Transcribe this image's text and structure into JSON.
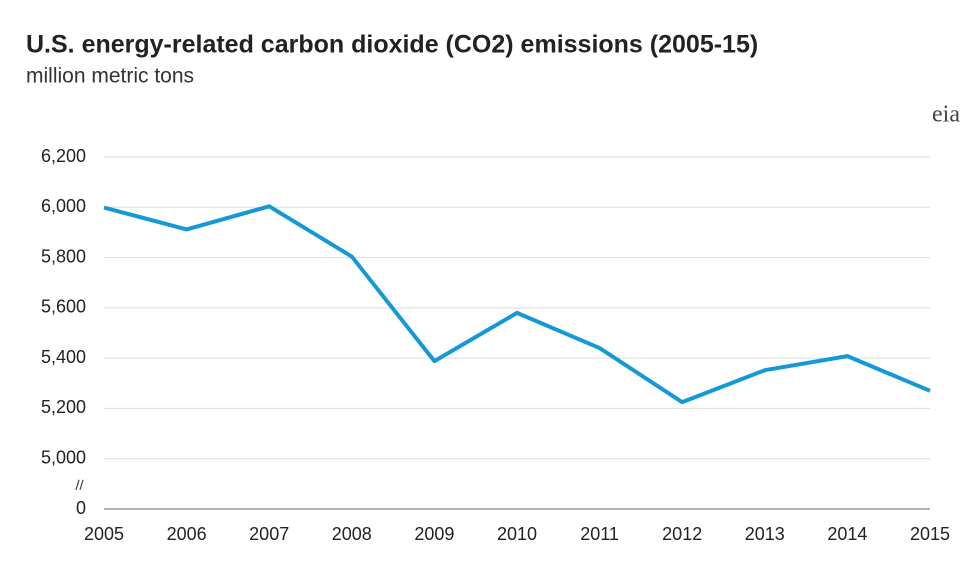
{
  "chart_data": {
    "type": "line",
    "title": "U.S. energy-related carbon dioxide (CO2) emissions (2005-15)",
    "subtitle": "million metric tons",
    "logo": "eia",
    "x": [
      2005,
      2006,
      2007,
      2008,
      2009,
      2010,
      2011,
      2012,
      2013,
      2014,
      2015
    ],
    "values": [
      5999,
      5912,
      6004,
      5804,
      5388,
      5580,
      5440,
      5225,
      5352,
      5408,
      5270
    ],
    "color": "#1499d6",
    "xlim": [
      2005,
      2015
    ],
    "xticks": [
      2005,
      2006,
      2007,
      2008,
      2009,
      2010,
      2011,
      2012,
      2013,
      2014,
      2015
    ],
    "ylim": [
      0,
      6200
    ],
    "yticks": [
      {
        "value": 0,
        "label": "0"
      },
      {
        "value": 5000,
        "label": "5,000"
      },
      {
        "value": 5200,
        "label": "5,200"
      },
      {
        "value": 5400,
        "label": "5,400"
      },
      {
        "value": 5600,
        "label": "5,600"
      },
      {
        "value": 5800,
        "label": "5,800"
      },
      {
        "value": 6000,
        "label": "6,000"
      },
      {
        "value": 6200,
        "label": "6,200"
      }
    ],
    "y_axis_break": true,
    "grid": true
  }
}
